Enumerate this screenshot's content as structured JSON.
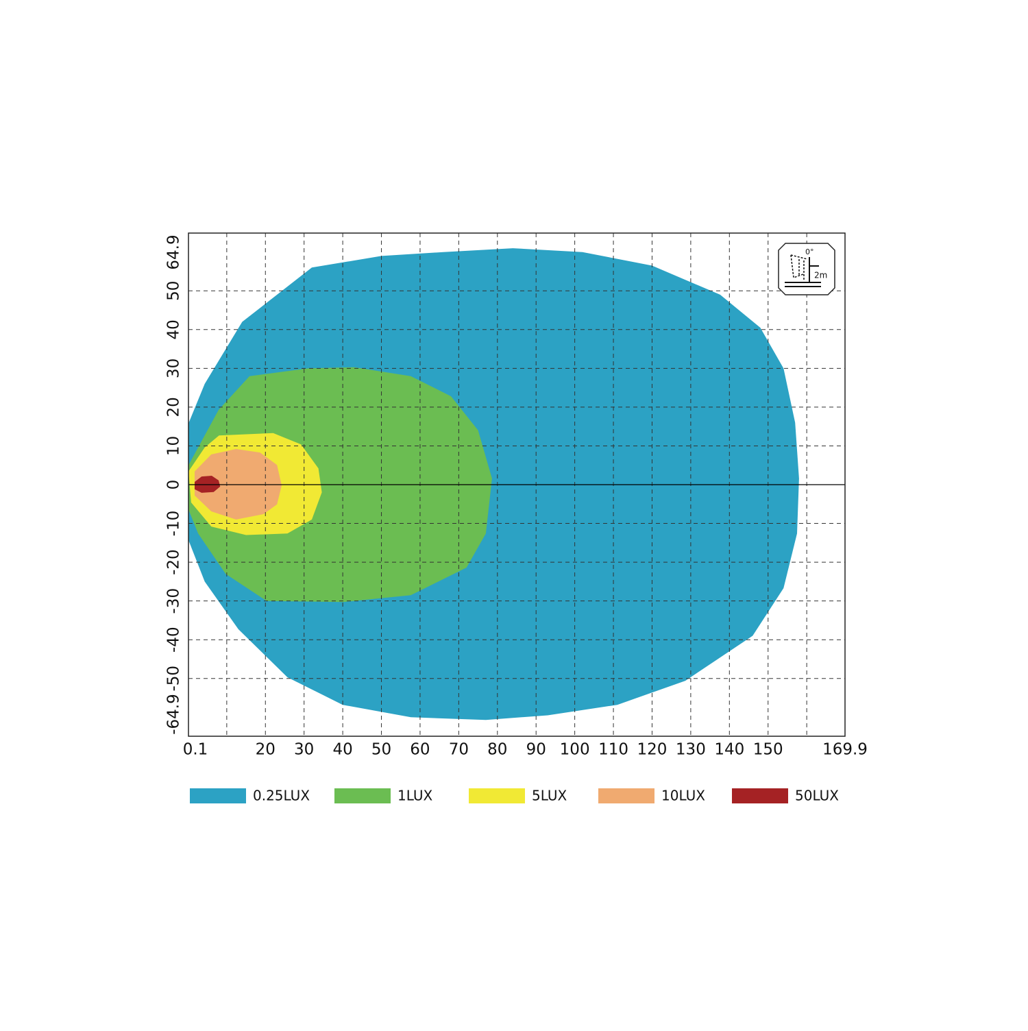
{
  "chart_data": {
    "type": "contour",
    "xlim": [
      0.1,
      169.9
    ],
    "ylim": [
      -64.9,
      64.9
    ],
    "xticks": [
      0.1,
      {
        "value": 10,
        "label": null
      },
      20,
      30,
      40,
      50,
      60,
      70,
      80,
      90,
      100,
      110,
      120,
      130,
      140,
      150,
      {
        "value": 160,
        "label": null
      },
      169.9
    ],
    "yticks": [
      -64.9,
      -50,
      -40,
      -30,
      -20,
      -10,
      0,
      10,
      20,
      30,
      40,
      50,
      64.9
    ],
    "grid": true,
    "legend": "bottom",
    "icon": {
      "angle_label": "0°",
      "height_label": "2m"
    },
    "series": [
      {
        "name": "0.25LUX",
        "color": "#2ca2c4",
        "x": [
          0.1,
          4.3,
          14,
          32,
          50,
          66,
          84,
          102,
          120,
          137.6,
          148,
          154,
          157,
          158,
          157.5,
          154,
          146,
          128.6,
          111,
          93,
          77,
          57.6,
          40,
          25.7,
          13,
          4.3,
          0.1
        ],
        "y": [
          15.8,
          26,
          42,
          56,
          59,
          60,
          61,
          60,
          56.5,
          49,
          40.5,
          30,
          16,
          1.6,
          -12.6,
          -26.7,
          -39,
          -50.6,
          -56.8,
          -59.5,
          -60.7,
          -60,
          -56.8,
          -49.7,
          -37.3,
          -25,
          -14.3
        ]
      },
      {
        "name": "1LUX",
        "color": "#6bbd52",
        "x": [
          0.1,
          7.9,
          15.9,
          31,
          43,
          57.6,
          68,
          75,
          78.6,
          77,
          72,
          57.6,
          40,
          20.3,
          9.7,
          2.6,
          0.1
        ],
        "y": [
          5,
          19.3,
          28,
          30,
          30.3,
          28,
          22.8,
          14,
          1.6,
          -12.6,
          -21.4,
          -28.5,
          -30.3,
          -30,
          -23,
          -12.6,
          -6.4
        ]
      },
      {
        "name": "5LUX",
        "color": "#f1e934",
        "x": [
          0.1,
          4.3,
          8,
          22,
          29.2,
          33.7,
          34.6,
          32,
          25.7,
          15,
          6,
          0.8
        ],
        "y": [
          3.4,
          9.6,
          12.7,
          13.3,
          10.4,
          4.2,
          -2,
          -9,
          -12.6,
          -13,
          -10.8,
          -4.6
        ]
      },
      {
        "name": "10LUX",
        "color": "#f0aa70",
        "x": [
          1.7,
          6,
          12.4,
          18.6,
          23,
          24.2,
          23,
          19.5,
          12.4,
          6,
          1.7
        ],
        "y": [
          3.4,
          7.8,
          9.2,
          8.3,
          5.1,
          -0.2,
          -5.1,
          -7.6,
          -9,
          -6.9,
          -2.8
        ]
      },
      {
        "name": "50LUX",
        "color": "#a52224",
        "x": [
          1.7,
          3.5,
          6.1,
          7.9,
          8.3,
          6.6,
          3.5,
          1.7
        ],
        "y": [
          0.7,
          2.1,
          2.3,
          1.1,
          -0.5,
          -1.9,
          -2.1,
          -1.2
        ]
      }
    ]
  }
}
